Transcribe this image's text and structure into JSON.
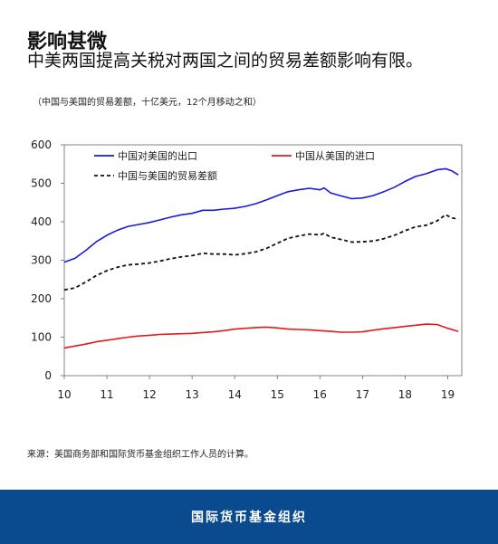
{
  "title": "影响甚微",
  "subtitle": "中美两国提高关税对两国之间的贸易差额影响有限。",
  "note": "（中国与美国的贸易差额，十亿美元，12个月移动之和）",
  "source": "来源：美国商务部和国际货币基金组织工作人员的计算。",
  "footer": {
    "org": "国际货币基金组织"
  },
  "chart_data": {
    "type": "line",
    "title": "",
    "xlabel": "",
    "ylabel": "",
    "xlim": [
      10,
      19.33
    ],
    "ylim": [
      0,
      600
    ],
    "x_ticks": [
      10,
      11,
      12,
      13,
      14,
      15,
      16,
      17,
      18,
      19
    ],
    "y_ticks": [
      0,
      100,
      200,
      300,
      400,
      500,
      600
    ],
    "grid": false,
    "legend_placement": "top-left",
    "series": [
      {
        "name": "中国对美国的出口",
        "color": "#1a1adc",
        "dash": "solid",
        "points": [
          [
            10,
            295
          ],
          [
            10.25,
            305
          ],
          [
            10.5,
            325
          ],
          [
            10.75,
            348
          ],
          [
            11,
            365
          ],
          [
            11.25,
            378
          ],
          [
            11.5,
            388
          ],
          [
            11.75,
            393
          ],
          [
            12,
            398
          ],
          [
            12.25,
            405
          ],
          [
            12.5,
            412
          ],
          [
            12.75,
            418
          ],
          [
            13,
            422
          ],
          [
            13.25,
            430
          ],
          [
            13.5,
            430
          ],
          [
            13.75,
            433
          ],
          [
            14,
            435
          ],
          [
            14.25,
            440
          ],
          [
            14.5,
            447
          ],
          [
            14.75,
            457
          ],
          [
            15,
            468
          ],
          [
            15.25,
            478
          ],
          [
            15.5,
            483
          ],
          [
            15.75,
            487
          ],
          [
            16,
            483
          ],
          [
            16.1,
            488
          ],
          [
            16.25,
            475
          ],
          [
            16.5,
            467
          ],
          [
            16.75,
            460
          ],
          [
            17,
            462
          ],
          [
            17.25,
            468
          ],
          [
            17.5,
            478
          ],
          [
            17.75,
            490
          ],
          [
            18,
            505
          ],
          [
            18.25,
            518
          ],
          [
            18.5,
            525
          ],
          [
            18.75,
            535
          ],
          [
            18.95,
            538
          ],
          [
            19.1,
            532
          ],
          [
            19.25,
            522
          ]
        ]
      },
      {
        "name": "中国从美国的进口",
        "color": "#e21a1a",
        "dash": "solid",
        "points": [
          [
            10,
            72
          ],
          [
            10.25,
            77
          ],
          [
            10.5,
            82
          ],
          [
            10.75,
            88
          ],
          [
            11,
            92
          ],
          [
            11.25,
            96
          ],
          [
            11.5,
            100
          ],
          [
            11.75,
            103
          ],
          [
            12,
            105
          ],
          [
            12.25,
            107
          ],
          [
            12.5,
            108
          ],
          [
            12.75,
            109
          ],
          [
            13,
            110
          ],
          [
            13.25,
            112
          ],
          [
            13.5,
            114
          ],
          [
            13.75,
            117
          ],
          [
            14,
            121
          ],
          [
            14.25,
            123
          ],
          [
            14.5,
            125
          ],
          [
            14.75,
            126
          ],
          [
            15,
            124
          ],
          [
            15.25,
            121
          ],
          [
            15.5,
            120
          ],
          [
            15.75,
            119
          ],
          [
            16,
            117
          ],
          [
            16.25,
            115
          ],
          [
            16.5,
            113
          ],
          [
            16.75,
            113
          ],
          [
            17,
            114
          ],
          [
            17.25,
            118
          ],
          [
            17.5,
            122
          ],
          [
            17.75,
            125
          ],
          [
            18,
            128
          ],
          [
            18.25,
            131
          ],
          [
            18.5,
            134
          ],
          [
            18.75,
            133
          ],
          [
            19,
            123
          ],
          [
            19.25,
            115
          ]
        ]
      },
      {
        "name": "中国与美国的贸易差额",
        "color": "#111111",
        "dash": "dashed",
        "points": [
          [
            10,
            223
          ],
          [
            10.25,
            228
          ],
          [
            10.5,
            243
          ],
          [
            10.75,
            260
          ],
          [
            11,
            273
          ],
          [
            11.25,
            282
          ],
          [
            11.5,
            288
          ],
          [
            11.75,
            290
          ],
          [
            12,
            293
          ],
          [
            12.25,
            298
          ],
          [
            12.5,
            304
          ],
          [
            12.75,
            309
          ],
          [
            13,
            312
          ],
          [
            13.25,
            318
          ],
          [
            13.5,
            316
          ],
          [
            13.75,
            316
          ],
          [
            14,
            314
          ],
          [
            14.25,
            317
          ],
          [
            14.5,
            322
          ],
          [
            14.75,
            331
          ],
          [
            15,
            344
          ],
          [
            15.25,
            357
          ],
          [
            15.5,
            363
          ],
          [
            15.75,
            368
          ],
          [
            16,
            366
          ],
          [
            16.1,
            370
          ],
          [
            16.25,
            360
          ],
          [
            16.5,
            354
          ],
          [
            16.75,
            347
          ],
          [
            17,
            348
          ],
          [
            17.25,
            350
          ],
          [
            17.5,
            356
          ],
          [
            17.75,
            365
          ],
          [
            18,
            377
          ],
          [
            18.25,
            387
          ],
          [
            18.5,
            391
          ],
          [
            18.75,
            402
          ],
          [
            18.95,
            418
          ],
          [
            19.1,
            410
          ],
          [
            19.25,
            407
          ]
        ]
      }
    ]
  }
}
